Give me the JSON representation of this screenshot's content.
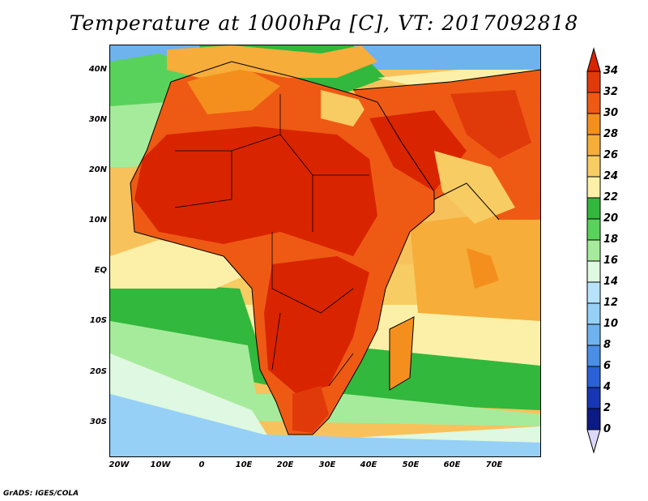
{
  "title": "Temperature at 1000hPa [C], VT: 2017092818",
  "credit": "GrADS: IGES/COLA",
  "map": {
    "lat_labels": [
      "40N",
      "30N",
      "20N",
      "10N",
      "EQ",
      "10S",
      "20S",
      "30S"
    ],
    "lon_labels": [
      "20W",
      "10W",
      "0",
      "10E",
      "20E",
      "30E",
      "40E",
      "50E",
      "60E",
      "70E"
    ],
    "lat_values": [
      40,
      30,
      20,
      10,
      0,
      -10,
      -20,
      -30
    ],
    "lon_values": [
      -20,
      -10,
      0,
      10,
      20,
      30,
      40,
      50,
      60,
      70
    ],
    "extent": {
      "lon_min": -22,
      "lon_max": 80,
      "lat_min": -36,
      "lat_max": 44
    }
  },
  "colorbar": {
    "labels": [
      "34",
      "32",
      "30",
      "28",
      "26",
      "24",
      "22",
      "20",
      "18",
      "16",
      "14",
      "12",
      "10",
      "8",
      "6",
      "4",
      "2",
      "0"
    ],
    "colors": {
      "above_34": "#d92400",
      "32-34": "#e13a0a",
      "30-32": "#ee5a14",
      "28-30": "#f48f1d",
      "26-28": "#f6ad39",
      "24-26": "#f7cc63",
      "22-24": "#fcf0a9",
      "20-22": "#32b83c",
      "18-20": "#58d25a",
      "16-18": "#a6eb9b",
      "14-16": "#def8e1",
      "12-14": "#b8e2fa",
      "10-12": "#96d0f7",
      "8-10": "#6eb2ee",
      "6-8": "#4a8ee6",
      "4-6": "#2a61d6",
      "2-4": "#1636b4",
      "0-2": "#0c1b84",
      "below_0": "#dcd8fa"
    }
  }
}
